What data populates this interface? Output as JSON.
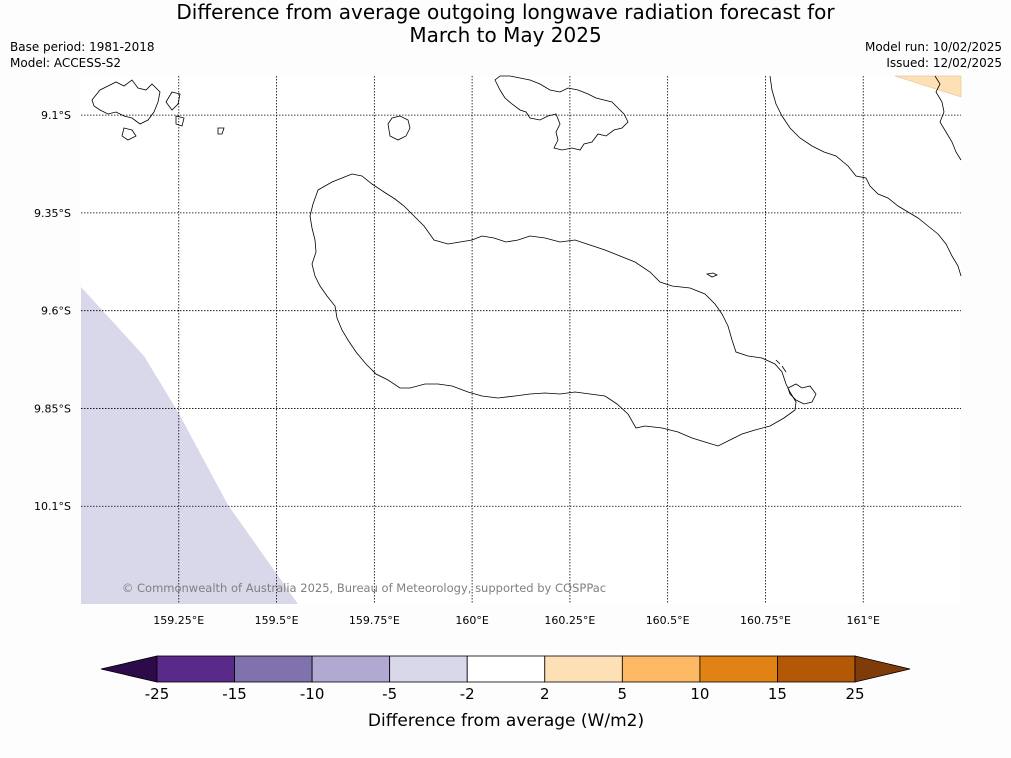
{
  "header": {
    "title_line1": "Difference from average outgoing longwave radiation forecast for",
    "title_line2": "March to May 2025",
    "base_period": "Base period: 1981-2018",
    "model": "Model: ACCESS-S2",
    "model_run": "Model run: 10/02/2025",
    "issued": "Issued: 12/02/2025"
  },
  "map": {
    "lat_labels": [
      "9.1°S",
      "9.35°S",
      "9.6°S",
      "9.85°S",
      "10.1°S"
    ],
    "lon_labels": [
      "159.25°E",
      "159.5°E",
      "159.75°E",
      "160°E",
      "160.25°E",
      "160.5°E",
      "160.75°E",
      "161°E"
    ],
    "lat_values": [
      -9.1,
      -9.35,
      -9.6,
      -9.85,
      -10.1
    ],
    "lon_values": [
      159.25,
      159.5,
      159.75,
      160.0,
      160.25,
      160.5,
      160.75,
      161.0
    ],
    "extent": {
      "lon": [
        159.0,
        161.25
      ],
      "lat": [
        -10.35,
        -9.0
      ]
    },
    "copyright": "© Commonwealth of Australia 2025, Bureau of Meteorology, supported by COSPPac"
  },
  "colorbar": {
    "label": "Difference from average (W/m2)",
    "ticks": [
      "-25",
      "-15",
      "-10",
      "-5",
      "-2",
      "2",
      "5",
      "10",
      "15",
      "25"
    ],
    "colors": [
      "#2d0b4a",
      "#5a2a8a",
      "#8072ad",
      "#b1a9d2",
      "#d9d8ea",
      "#ffffff",
      "#fee0b6",
      "#fdb863",
      "#e08214",
      "#b35806",
      "#7f3b08"
    ]
  },
  "chart_data": {
    "type": "heatmap",
    "title": "Difference from average outgoing longwave radiation forecast for March to May 2025",
    "colorbar_label": "Difference from average (W/m2)",
    "color_levels": [
      -25,
      -15,
      -10,
      -5,
      -2,
      2,
      5,
      10,
      15,
      25
    ],
    "filled_regions": [
      {
        "range": "-5 to -2",
        "color": "#d9d8ea",
        "area": "south-west corner"
      },
      {
        "range": "2 to 5",
        "color": "#fee0b6",
        "area": "north-east corner"
      }
    ],
    "grid": true
  }
}
